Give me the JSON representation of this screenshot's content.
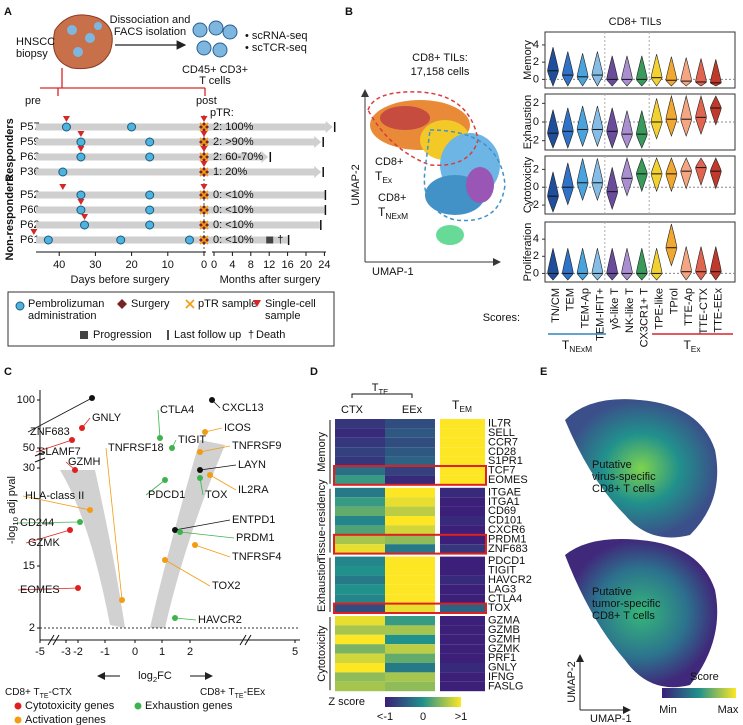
{
  "panel_labels": [
    "A",
    "B",
    "C",
    "D",
    "E"
  ],
  "panel_a": {
    "biopsy": [
      "HNSCC",
      "biopsy"
    ],
    "process": [
      "Dissociation and",
      "FACS isolation"
    ],
    "assays": [
      "• scRNA-seq",
      "• scTCR-seq"
    ],
    "cells": [
      "CD45+ CD3+",
      "T cells"
    ],
    "pre": "pre",
    "post": "post",
    "ptr_title": "pTR:",
    "groups": [
      "Responders",
      "Non-responders"
    ],
    "patients": [
      {
        "id": "P57",
        "ptr": "2: 100%"
      },
      {
        "id": "P59",
        "ptr": "2: >90%"
      },
      {
        "id": "P63",
        "ptr": "2: 60-70%"
      },
      {
        "id": "P36",
        "ptr": "1: 20%"
      },
      {
        "id": "P52",
        "ptr": "0: <10%"
      },
      {
        "id": "P60",
        "ptr": "0: <10%"
      },
      {
        "id": "P62",
        "ptr": "0: <10%"
      },
      {
        "id": "P61",
        "ptr": "0: <10%"
      }
    ],
    "days_ticks": [
      "40",
      "30",
      "20",
      "10",
      "0"
    ],
    "months_ticks": [
      "0",
      "4",
      "8",
      "12",
      "16",
      "20",
      "24"
    ],
    "days_label": "Days before surgery",
    "months_label": "Months after surgery",
    "legend": {
      "pembro": [
        "Pembrolizuman",
        "administration"
      ],
      "surgery": "Surgery",
      "ptr": "pTR sample",
      "single": [
        "Single-cell",
        "sample"
      ],
      "progression": "Progression",
      "followup": "Last follow up",
      "death_symbol": "†",
      "death": "Death"
    }
  },
  "panel_b": {
    "umap_title": [
      "CD8+ TILs:",
      "17,158 cells"
    ],
    "tex": [
      "CD8+",
      "T",
      "Ex"
    ],
    "tnexm": [
      "CD8+",
      "T",
      "NExM"
    ],
    "umap_y": "UMAP-2",
    "umap_x": "UMAP-1",
    "violin_title": "CD8+ TILs",
    "categories": [
      "TN/CM",
      "TEM",
      "TEM-Ap",
      "TEM-IFIT+",
      "γδ-like T",
      "NK-like T",
      "CX3CR1+ T",
      "TPE-like",
      "TProl",
      "TTE-Ap",
      "TTE-CTX",
      "TTE-EEx"
    ],
    "colors": [
      "#1f4e9c",
      "#2f72c8",
      "#4aa3dc",
      "#86bde6",
      "#6a4c9c",
      "#a98fd0",
      "#3a9a5c",
      "#f2d233",
      "#f0a830",
      "#f4a582",
      "#e0644f",
      "#c0392b"
    ],
    "rows": [
      {
        "name": "Memory",
        "ylim": [
          -1,
          5.5
        ],
        "yticks": [
          0,
          2,
          4
        ],
        "medians": [
          1,
          0.5,
          0.3,
          0.5,
          0,
          0,
          0,
          0.2,
          -0.1,
          -0.2,
          -0.3,
          -0.4
        ]
      },
      {
        "name": "Exhaustion",
        "ylim": [
          -3,
          3
        ],
        "yticks": [
          -2,
          0,
          2
        ],
        "medians": [
          -1.2,
          -1,
          -0.8,
          -0.8,
          -1,
          -1.3,
          -1.3,
          0,
          0.3,
          0.3,
          0.5,
          1.5
        ]
      },
      {
        "name": "Cytotoxicity",
        "ylim": [
          -3,
          3.5
        ],
        "yticks": [
          -2,
          0,
          2
        ],
        "medians": [
          -1,
          0,
          0.5,
          0.5,
          -0.5,
          1,
          1.5,
          1.5,
          1.5,
          1.8,
          2.2,
          1.8
        ]
      },
      {
        "name": "Proliferation",
        "ylim": [
          -1,
          6
        ],
        "yticks": [
          0,
          2,
          4
        ],
        "medians": [
          0,
          0,
          0,
          0,
          0,
          0,
          0,
          0,
          3,
          0.2,
          0.2,
          0.2
        ]
      }
    ],
    "scores": "Scores:",
    "group_tnexm": [
      "T",
      "NExM"
    ],
    "group_tex": [
      "T",
      "Ex"
    ]
  },
  "panel_c": {
    "ylabel": [
      "-log",
      "10",
      " adj pval"
    ],
    "yticks": [
      "100",
      "50",
      "30",
      "15",
      "2"
    ],
    "xticks": [
      "-5",
      "-3",
      "-2",
      "-1",
      "0",
      "1",
      "2",
      "5"
    ],
    "xlabel": [
      "log",
      "2",
      "FC"
    ],
    "left": [
      "CD8+ T",
      "TE",
      "-CTX"
    ],
    "right": [
      "CD8+ T",
      "TE",
      "-EEx"
    ],
    "legend": [
      {
        "name": "Cytotoxicity genes",
        "color": "#e02020"
      },
      {
        "name": "Exhaustion genes",
        "color": "#3cb44b"
      },
      {
        "name": "Activation genes",
        "color": "#f39c12"
      }
    ],
    "genes": [
      "ZNF683",
      "GNLY",
      "SLAMF7",
      "GZMH",
      "TNFRSF18",
      "CTLA4",
      "TIGIT",
      "CXCL13",
      "ICOS",
      "TNFRSF9",
      "LAYN",
      "IL2RA",
      "HLA-class II",
      "PDCD1",
      "TOX",
      "CD244",
      "ENTPD1",
      "PRDM1",
      "GZMK",
      "TNFRSF4",
      "EOMES",
      "TOX2",
      "HAVCR2"
    ]
  },
  "panel_d": {
    "tte": [
      "T",
      "TE"
    ],
    "columns": [
      "CTX",
      "EEx"
    ],
    "tem": [
      "T",
      "EM"
    ],
    "groups": [
      {
        "name": "Memory",
        "genes": [
          "IL7R",
          "SELL",
          "CCR7",
          "CD28",
          "S1PR1",
          "TCF7",
          "EOMES"
        ],
        "z": [
          [
            -0.8,
            -0.6,
            1
          ],
          [
            -0.9,
            -0.5,
            1
          ],
          [
            -0.8,
            -0.6,
            1
          ],
          [
            -0.7,
            -0.5,
            1
          ],
          [
            -0.8,
            -0.4,
            1
          ],
          [
            -0.3,
            -0.7,
            1
          ],
          [
            0.1,
            -0.9,
            1
          ]
        ]
      },
      {
        "name": "Tissue-residency",
        "genes": [
          "ITGAE",
          "ITGA1",
          "CD69",
          "CD101",
          "CXCR6",
          "PRDM1",
          "ZNF683"
        ],
        "z": [
          [
            -0.2,
            1,
            -0.9
          ],
          [
            0.1,
            0.9,
            -1
          ],
          [
            0.3,
            0.7,
            -1
          ],
          [
            -0.1,
            1,
            -0.9
          ],
          [
            0.2,
            0.8,
            -1
          ],
          [
            0.6,
            0.5,
            -1
          ],
          [
            0.9,
            -0.2,
            -0.8
          ]
        ]
      },
      {
        "name": "Exhaustion",
        "genes": [
          "PDCD1",
          "TIGIT",
          "HAVCR2",
          "LAG3",
          "CTLA4",
          "TOX"
        ],
        "z": [
          [
            -0.1,
            1,
            -1
          ],
          [
            0,
            1,
            -1
          ],
          [
            -0.2,
            1,
            -0.9
          ],
          [
            0,
            1,
            -1
          ],
          [
            -0.1,
            1,
            -1
          ],
          [
            -0.6,
            0.9,
            -0.4
          ]
        ]
      },
      {
        "name": "Cytotoxicity",
        "genes": [
          "GZMA",
          "GZMB",
          "GZMH",
          "GZMK",
          "PRF1",
          "GNLY",
          "IFNG",
          "FASLG"
        ],
        "z": [
          [
            0.9,
            0.1,
            -1
          ],
          [
            0.6,
            0.6,
            -1
          ],
          [
            1,
            0,
            -1
          ],
          [
            0.4,
            0.7,
            -1
          ],
          [
            0.8,
            0.3,
            -1
          ],
          [
            1,
            -0.2,
            -0.9
          ],
          [
            0.5,
            0.6,
            -1
          ],
          [
            0.6,
            0.5,
            -1
          ]
        ]
      }
    ],
    "highlight": [
      "TCF7",
      "EOMES",
      "PRDM1",
      "ZNF683",
      "TOX"
    ],
    "colorbar_title": "Z score",
    "colorbar_labels": [
      "<-1",
      "0",
      ">1"
    ],
    "zlim": [
      -1,
      1
    ]
  },
  "panel_e": {
    "top": [
      "Putative",
      "virus-specific",
      "CD8+ T cells"
    ],
    "bottom": [
      "Putative",
      "tumor-specific",
      "CD8+ T cells"
    ],
    "umap_y": "UMAP-2",
    "umap_x": "UMAP-1",
    "score": "Score",
    "min": "Min",
    "max": "Max"
  }
}
